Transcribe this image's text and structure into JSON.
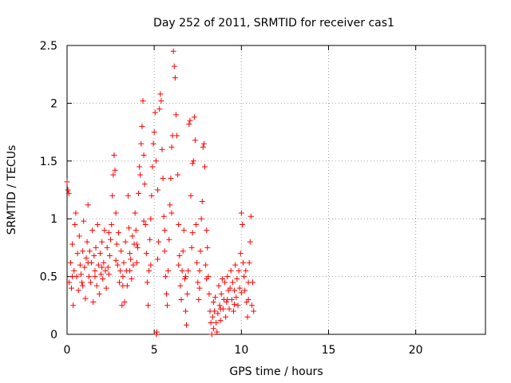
{
  "chart_data": {
    "type": "scatter",
    "title": "Day 252 of 2011, SRMTID for receiver cas1",
    "xlabel": "GPS time / hours",
    "ylabel": "SRMTID / TECUs",
    "xlim": [
      0,
      24
    ],
    "ylim": [
      0,
      2.5
    ],
    "x_ticks": [
      0,
      5,
      10,
      15,
      20
    ],
    "y_ticks": [
      0,
      0.5,
      1,
      1.5,
      2,
      2.5
    ],
    "x_tick_labels": [
      "0",
      "5",
      "10",
      "15",
      "20"
    ],
    "y_tick_labels": [
      "0",
      "0.5",
      "1",
      "1.5",
      "2",
      "2.5"
    ],
    "grid": true,
    "marker": "plus",
    "series": [
      {
        "name": "cas1",
        "color": "#ff0000",
        "points": [
          [
            0.0,
            1.32
          ],
          [
            0.05,
            1.25
          ],
          [
            0.1,
            1.22
          ],
          [
            0.12,
            0.45
          ],
          [
            0.2,
            0.62
          ],
          [
            0.25,
            0.4
          ],
          [
            0.3,
            0.78
          ],
          [
            0.35,
            0.25
          ],
          [
            0.4,
            0.55
          ],
          [
            0.45,
            0.95
          ],
          [
            0.5,
            1.05
          ],
          [
            0.55,
            0.5
          ],
          [
            0.6,
            0.7
          ],
          [
            0.65,
            0.38
          ],
          [
            0.7,
            0.85
          ],
          [
            0.75,
            0.6
          ],
          [
            0.8,
            0.52
          ],
          [
            0.85,
            0.45
          ],
          [
            0.9,
            0.72
          ],
          [
            0.95,
            0.98
          ],
          [
            1.0,
            0.58
          ],
          [
            1.05,
            0.31
          ],
          [
            1.1,
            0.66
          ],
          [
            1.15,
            0.8
          ],
          [
            1.2,
            1.12
          ],
          [
            1.25,
            0.5
          ],
          [
            1.3,
            0.72
          ],
          [
            1.35,
            0.45
          ],
          [
            1.4,
            0.62
          ],
          [
            1.45,
            0.9
          ],
          [
            1.5,
            0.28
          ],
          [
            1.55,
            0.68
          ],
          [
            1.6,
            0.55
          ],
          [
            1.65,
            0.75
          ],
          [
            1.7,
            0.42
          ],
          [
            1.75,
            0.95
          ],
          [
            1.8,
            0.6
          ],
          [
            1.85,
            0.35
          ],
          [
            1.9,
            0.7
          ],
          [
            1.95,
            0.52
          ],
          [
            2.0,
            0.8
          ],
          [
            2.05,
            0.48
          ],
          [
            2.1,
            0.62
          ],
          [
            2.15,
            0.9
          ],
          [
            2.2,
            0.55
          ],
          [
            2.25,
            0.4
          ],
          [
            2.3,
            0.75
          ],
          [
            2.35,
            0.58
          ],
          [
            2.4,
            0.88
          ],
          [
            2.45,
            0.68
          ],
          [
            2.5,
            0.82
          ],
          [
            2.55,
            0.95
          ],
          [
            2.6,
            1.2
          ],
          [
            2.65,
            1.38
          ],
          [
            2.7,
            1.55
          ],
          [
            2.75,
            1.42
          ],
          [
            2.8,
            1.05
          ],
          [
            2.85,
            0.78
          ],
          [
            2.9,
            0.6
          ],
          [
            2.95,
            0.88
          ],
          [
            3.0,
            0.45
          ],
          [
            3.05,
            0.55
          ],
          [
            3.1,
            0.72
          ],
          [
            3.15,
            0.25
          ],
          [
            3.2,
            0.5
          ],
          [
            3.25,
            0.62
          ],
          [
            3.3,
            0.28
          ],
          [
            3.35,
            0.8
          ],
          [
            3.4,
            0.55
          ],
          [
            3.45,
            0.42
          ],
          [
            3.5,
            1.2
          ],
          [
            3.55,
            0.92
          ],
          [
            3.6,
            0.7
          ],
          [
            3.65,
            0.65
          ],
          [
            3.7,
            0.48
          ],
          [
            3.75,
            0.85
          ],
          [
            3.8,
            0.6
          ],
          [
            3.85,
            0.78
          ],
          [
            3.9,
            1.05
          ],
          [
            3.95,
            0.9
          ],
          [
            4.0,
            0.62
          ],
          [
            4.05,
            0.75
          ],
          [
            4.1,
            1.22
          ],
          [
            4.15,
            1.45
          ],
          [
            4.2,
            1.38
          ],
          [
            4.25,
            1.65
          ],
          [
            4.3,
            1.8
          ],
          [
            4.35,
            2.02
          ],
          [
            4.4,
            1.55
          ],
          [
            4.45,
            1.3
          ],
          [
            4.5,
            0.95
          ],
          [
            4.55,
            0.7
          ],
          [
            4.6,
            0.45
          ],
          [
            4.65,
            0.25
          ],
          [
            4.7,
            0.55
          ],
          [
            4.75,
            0.82
          ],
          [
            4.8,
            1.0
          ],
          [
            4.85,
            1.2
          ],
          [
            4.9,
            1.45
          ],
          [
            4.95,
            1.65
          ],
          [
            5.0,
            1.75
          ],
          [
            5.05,
            1.92
          ],
          [
            5.1,
            1.5
          ],
          [
            5.12,
            0.0
          ],
          [
            5.15,
            0.02
          ],
          [
            5.2,
            0.65
          ],
          [
            5.25,
            0.8
          ],
          [
            5.3,
            1.95
          ],
          [
            5.35,
            2.08
          ],
          [
            5.4,
            2.02
          ],
          [
            5.45,
            1.6
          ],
          [
            5.5,
            1.35
          ],
          [
            5.55,
            1.02
          ],
          [
            5.6,
            0.72
          ],
          [
            5.65,
            0.5
          ],
          [
            5.7,
            0.35
          ],
          [
            5.75,
            0.25
          ],
          [
            5.8,
            0.55
          ],
          [
            5.85,
            0.82
          ],
          [
            5.9,
            1.12
          ],
          [
            5.95,
            1.35
          ],
          [
            6.0,
            1.62
          ],
          [
            6.05,
            1.72
          ],
          [
            6.1,
            2.45
          ],
          [
            6.15,
            2.32
          ],
          [
            6.2,
            2.22
          ],
          [
            6.25,
            1.9
          ],
          [
            6.3,
            1.72
          ],
          [
            6.35,
            1.38
          ],
          [
            6.4,
            0.95
          ],
          [
            6.45,
            0.68
          ],
          [
            6.5,
            0.42
          ],
          [
            6.55,
            0.3
          ],
          [
            6.6,
            0.55
          ],
          [
            6.65,
            0.72
          ],
          [
            6.7,
            0.9
          ],
          [
            6.75,
            0.48
          ],
          [
            6.8,
            0.2
          ],
          [
            6.85,
            0.08
          ],
          [
            6.9,
            0.35
          ],
          [
            6.95,
            0.55
          ],
          [
            7.0,
            1.82
          ],
          [
            7.05,
            1.85
          ],
          [
            7.1,
            1.2
          ],
          [
            7.15,
            0.75
          ],
          [
            7.2,
            1.48
          ],
          [
            7.25,
            1.5
          ],
          [
            7.3,
            1.88
          ],
          [
            7.35,
            1.68
          ],
          [
            7.4,
            0.95
          ],
          [
            7.45,
            0.62
          ],
          [
            7.5,
            0.45
          ],
          [
            7.55,
            0.3
          ],
          [
            7.6,
            0.55
          ],
          [
            7.65,
            0.72
          ],
          [
            7.7,
            1.0
          ],
          [
            7.75,
            1.15
          ],
          [
            7.8,
            1.62
          ],
          [
            7.85,
            1.65
          ],
          [
            7.9,
            1.45
          ],
          [
            7.95,
            0.6
          ],
          [
            8.0,
            0.9
          ],
          [
            8.05,
            0.75
          ],
          [
            8.1,
            0.5
          ],
          [
            8.15,
            0.35
          ],
          [
            8.2,
            0.2
          ],
          [
            8.25,
            0.1
          ],
          [
            8.3,
            0.0
          ],
          [
            8.35,
            0.15
          ],
          [
            8.4,
            0.05
          ],
          [
            8.45,
            0.2
          ],
          [
            8.5,
            0.32
          ],
          [
            8.55,
            0.1
          ],
          [
            8.6,
            0.02
          ],
          [
            8.65,
            0.18
          ],
          [
            8.7,
            0.42
          ],
          [
            8.75,
            0.25
          ],
          [
            8.8,
            0.12
          ],
          [
            8.85,
            0.35
          ],
          [
            8.9,
            0.48
          ],
          [
            8.95,
            0.22
          ],
          [
            9.0,
            0.3
          ],
          [
            9.05,
            0.45
          ],
          [
            9.1,
            0.15
          ],
          [
            9.15,
            0.28
          ],
          [
            9.2,
            0.5
          ],
          [
            9.25,
            0.38
          ],
          [
            9.3,
            0.22
          ],
          [
            9.35,
            0.4
          ],
          [
            9.4,
            0.55
          ],
          [
            9.45,
            0.3
          ],
          [
            9.5,
            0.45
          ],
          [
            9.55,
            0.2
          ],
          [
            9.6,
            0.38
          ],
          [
            9.65,
            0.6
          ],
          [
            9.7,
            0.32
          ],
          [
            9.75,
            0.48
          ],
          [
            9.8,
            0.25
          ],
          [
            9.85,
            0.55
          ],
          [
            9.9,
            0.4
          ],
          [
            9.95,
            0.7
          ],
          [
            10.0,
            1.05
          ],
          [
            10.05,
            0.95
          ],
          [
            10.1,
            0.62
          ],
          [
            10.15,
            0.5
          ],
          [
            10.2,
            0.38
          ],
          [
            10.25,
            0.55
          ],
          [
            10.3,
            0.28
          ],
          [
            10.35,
            0.15
          ],
          [
            10.4,
            0.45
          ],
          [
            10.45,
            0.62
          ],
          [
            10.5,
            0.8
          ],
          [
            10.55,
            1.02
          ],
          [
            10.6,
            0.25
          ],
          [
            10.65,
            0.45
          ],
          [
            10.7,
            0.2
          ],
          [
            0.3,
            0.5
          ],
          [
            0.9,
            0.42
          ],
          [
            1.2,
            0.62
          ],
          [
            1.6,
            0.5
          ],
          [
            2.0,
            0.58
          ],
          [
            2.4,
            0.52
          ],
          [
            2.8,
            0.64
          ],
          [
            3.2,
            0.42
          ],
          [
            3.6,
            0.55
          ],
          [
            4.0,
            0.78
          ],
          [
            4.4,
            0.98
          ],
          [
            4.8,
            0.6
          ],
          [
            5.2,
            1.25
          ],
          [
            5.6,
            0.9
          ],
          [
            6.0,
            1.05
          ],
          [
            6.4,
            0.6
          ],
          [
            6.8,
            0.5
          ],
          [
            7.2,
            0.88
          ],
          [
            7.6,
            0.4
          ],
          [
            8.0,
            0.48
          ],
          [
            8.4,
            0.28
          ],
          [
            8.8,
            0.22
          ],
          [
            9.2,
            0.3
          ],
          [
            9.6,
            0.26
          ],
          [
            10.0,
            0.36
          ],
          [
            10.4,
            0.3
          ]
        ]
      }
    ]
  }
}
